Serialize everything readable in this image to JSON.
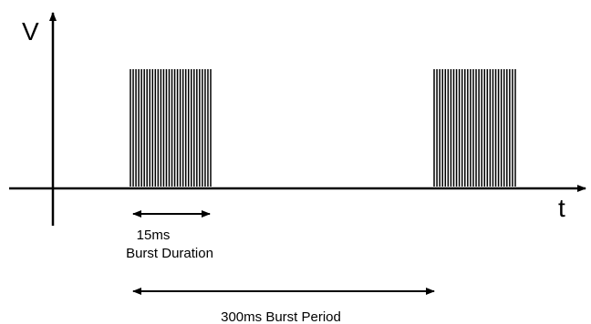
{
  "axes": {
    "y_label": "V",
    "x_label": "t"
  },
  "bursts": {
    "count": 2,
    "pulses_per_burst": 30
  },
  "annotations": {
    "duration_value": "15ms",
    "duration_label": "Burst Duration",
    "period_label": "300ms Burst Period"
  },
  "colors": {
    "line": "#000000",
    "background": "#ffffff"
  }
}
